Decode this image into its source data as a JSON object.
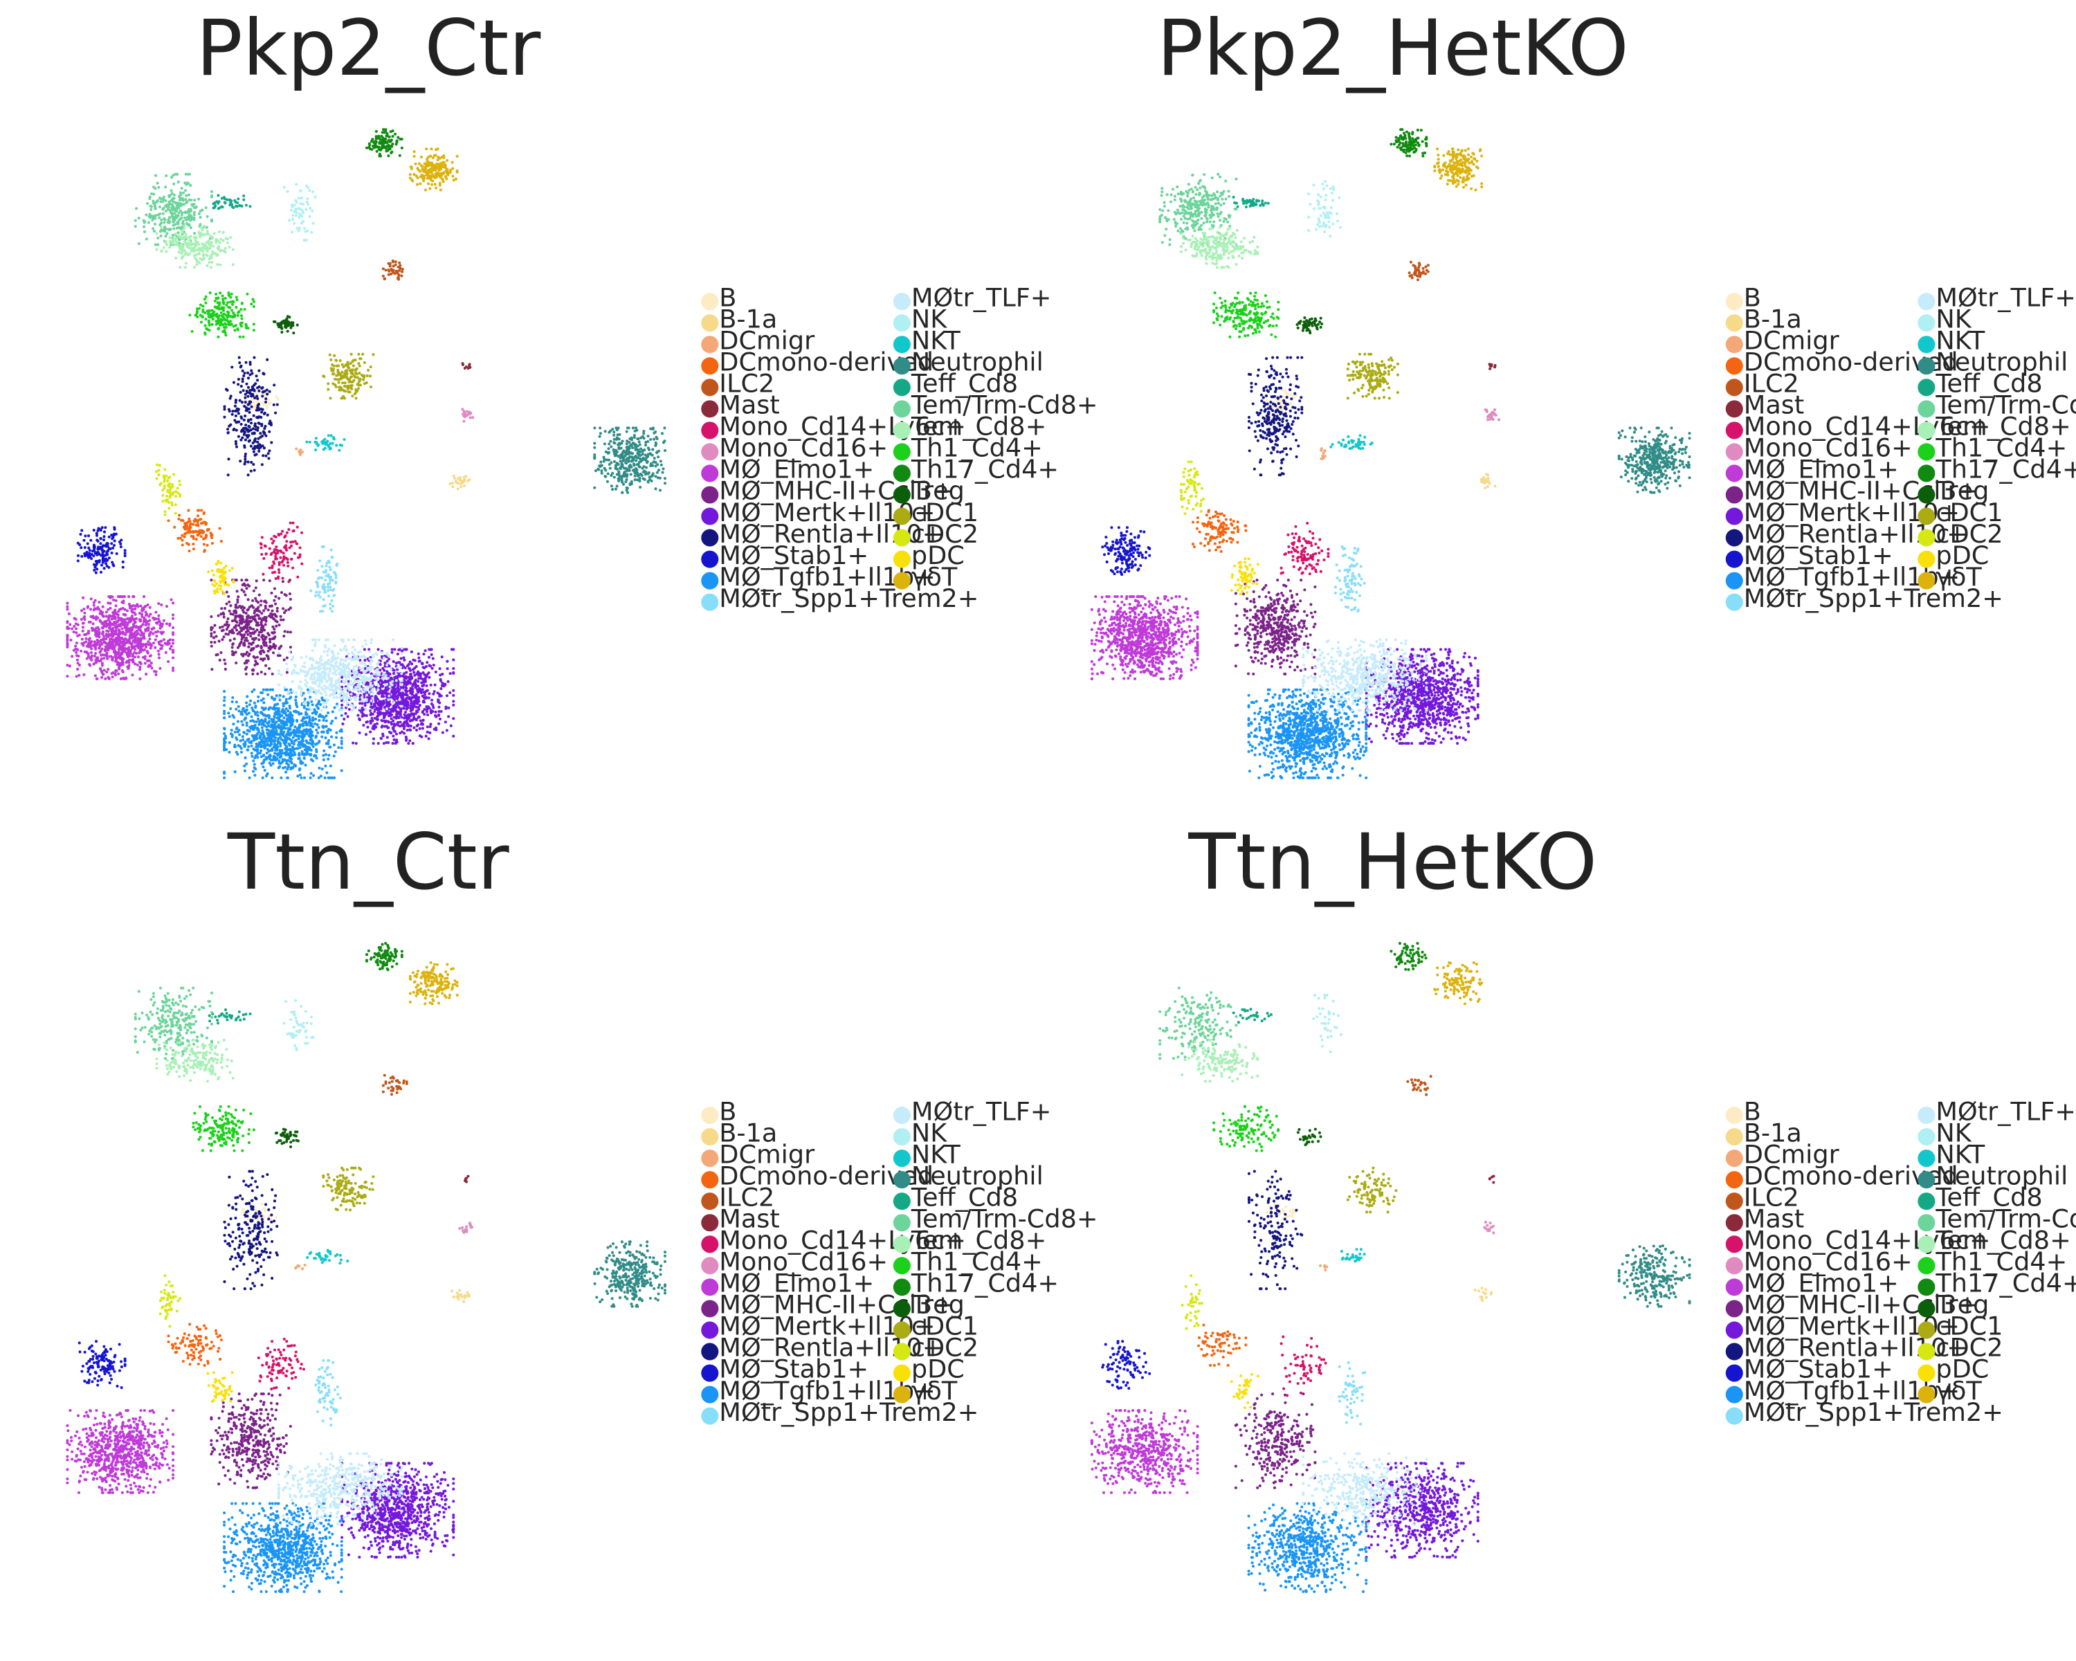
{
  "chart_data": {
    "type": "scatter",
    "grid": false,
    "axes_visible": false,
    "legend_placement": "right of each panel, two columns",
    "panels": [
      {
        "title": "Pkp2_Ctr",
        "density": 1.0
      },
      {
        "title": "Pkp2_HetKO",
        "density": 1.0
      },
      {
        "title": "Ttn_Ctr",
        "density": 0.8
      },
      {
        "title": "Ttn_HetKO",
        "density": 0.6
      }
    ],
    "legend_columns": [
      [
        "B",
        "B-1a",
        "DCmigr",
        "DCmono-derived",
        "ILC2",
        "Mast",
        "Mono_Cd14+Ly6c+",
        "Mono_Cd16+",
        "MØ_Elmo1+",
        "MØ_MHC-II+Ccl3+",
        "MØ_Mertk+Il10+",
        "MØ_Rentla+Il10+",
        "MØ_Stab1+",
        "MØ_Tgfb1+Il1b+",
        "MØtr_Spp1+Trem2+"
      ],
      [
        "MØtr_TLF+",
        "NK",
        "NKT",
        "Neutrophil",
        "Teff_Cd8",
        "Tem/Trm-Cd8+",
        "Tem_Cd8+",
        "Th1_Cd4+",
        "Th17_Cd4+",
        "Treg",
        "cDC1",
        "cDC2",
        "pDC",
        "γδT"
      ]
    ],
    "series": [
      {
        "name": "B",
        "color": "#fdebc3"
      },
      {
        "name": "B-1a",
        "color": "#f7d98a"
      },
      {
        "name": "DCmigr",
        "color": "#f5a877"
      },
      {
        "name": "DCmono-derived",
        "color": "#f46511"
      },
      {
        "name": "ILC2",
        "color": "#c1561d"
      },
      {
        "name": "Mast",
        "color": "#8b2a3a"
      },
      {
        "name": "Mono_Cd14+Ly6c+",
        "color": "#d6126a"
      },
      {
        "name": "Mono_Cd16+",
        "color": "#e08bbf"
      },
      {
        "name": "MØ_Elmo1+",
        "color": "#bf3bd8"
      },
      {
        "name": "MØ_MHC-II+Ccl3+",
        "color": "#7b2389"
      },
      {
        "name": "MØ_Mertk+Il10+",
        "color": "#7419db"
      },
      {
        "name": "MØ_Rentla+Il10+",
        "color": "#141680"
      },
      {
        "name": "MØ_Stab1+",
        "color": "#1515d0"
      },
      {
        "name": "MØ_Tgfb1+Il1b+",
        "color": "#1b95f5"
      },
      {
        "name": "MØtr_Spp1+Trem2+",
        "color": "#87def9"
      },
      {
        "name": "MØtr_TLF+",
        "color": "#c6ebfb"
      },
      {
        "name": "NK",
        "color": "#b0eff2"
      },
      {
        "name": "NKT",
        "color": "#12c7cc"
      },
      {
        "name": "Neutrophil",
        "color": "#318c87"
      },
      {
        "name": "Teff_Cd8",
        "color": "#15a886"
      },
      {
        "name": "Tem/Trm-Cd8+",
        "color": "#6dd49b"
      },
      {
        "name": "Tem_Cd8+",
        "color": "#a9f0b6"
      },
      {
        "name": "Th1_Cd4+",
        "color": "#1bd11b"
      },
      {
        "name": "Th17_Cd4+",
        "color": "#108a10"
      },
      {
        "name": "Treg",
        "color": "#0b5f0b"
      },
      {
        "name": "cDC1",
        "color": "#abab14"
      },
      {
        "name": "cDC2",
        "color": "#d6e812"
      },
      {
        "name": "pDC",
        "color": "#f9e009"
      },
      {
        "name": "γδT",
        "color": "#dcb20d"
      }
    ],
    "clusters": [
      {
        "series": "B",
        "x": 195,
        "y": 300,
        "rx": 12,
        "ry": 7,
        "n": 40
      },
      {
        "series": "B-1a",
        "x": 345,
        "y": 361,
        "rx": 7,
        "ry": 5,
        "n": 25
      },
      {
        "series": "DCmigr",
        "x": 224,
        "y": 340,
        "rx": 4,
        "ry": 4,
        "n": 10
      },
      {
        "series": "DCmono-derived",
        "x": 146,
        "y": 398,
        "rx": 18,
        "ry": 14,
        "n": 110
      },
      {
        "series": "ILC2",
        "x": 296,
        "y": 203,
        "rx": 8,
        "ry": 8,
        "n": 40
      },
      {
        "series": "Mast",
        "x": 350,
        "y": 274,
        "rx": 3,
        "ry": 3,
        "n": 8
      },
      {
        "series": "Mono_Cd14+Ly6c+",
        "x": 210,
        "y": 414,
        "rx": 16,
        "ry": 20,
        "n": 100
      },
      {
        "series": "Mono_Cd16+",
        "x": 350,
        "y": 311,
        "rx": 5,
        "ry": 5,
        "n": 20
      },
      {
        "series": "MØ_Elmo1+",
        "x": 90,
        "y": 478,
        "rx": 36,
        "ry": 28,
        "n": 900
      },
      {
        "series": "MØ_MHC-II+Ccl3+",
        "x": 188,
        "y": 470,
        "rx": 27,
        "ry": 32,
        "n": 450
      },
      {
        "series": "MØ_Mertk+Il10+",
        "x": 298,
        "y": 522,
        "rx": 38,
        "ry": 32,
        "n": 1000
      },
      {
        "series": "MØ_Rentla+Il10+",
        "x": 188,
        "y": 312,
        "rx": 18,
        "ry": 40,
        "n": 260
      },
      {
        "series": "MØ_Stab1+",
        "x": 76,
        "y": 413,
        "rx": 16,
        "ry": 16,
        "n": 150
      },
      {
        "series": "MØ_Tgfb1+Il1b+",
        "x": 212,
        "y": 550,
        "rx": 40,
        "ry": 30,
        "n": 1000
      },
      {
        "series": "MØtr_Spp1+Trem2+",
        "x": 244,
        "y": 434,
        "rx": 10,
        "ry": 22,
        "n": 80
      },
      {
        "series": "MØtr_TLF+",
        "x": 255,
        "y": 506,
        "rx": 42,
        "ry": 24,
        "n": 560
      },
      {
        "series": "NK",
        "x": 225,
        "y": 158,
        "rx": 11,
        "ry": 20,
        "n": 60
      },
      {
        "series": "NKT",
        "x": 245,
        "y": 332,
        "rx": 14,
        "ry": 5,
        "n": 40
      },
      {
        "series": "Neutrophil",
        "x": 472,
        "y": 345,
        "rx": 24,
        "ry": 22,
        "n": 380
      },
      {
        "series": "Teff_Cd8",
        "x": 172,
        "y": 152,
        "rx": 14,
        "ry": 5,
        "n": 40
      },
      {
        "series": "Tem/Trm-Cd8+",
        "x": 130,
        "y": 157,
        "rx": 26,
        "ry": 24,
        "n": 300
      },
      {
        "series": "Tem_Cd8+",
        "x": 146,
        "y": 185,
        "rx": 26,
        "ry": 14,
        "n": 220
      },
      {
        "series": "Th1_Cd4+",
        "x": 166,
        "y": 236,
        "rx": 22,
        "ry": 15,
        "n": 190
      },
      {
        "series": "Th17_Cd4+",
        "x": 288,
        "y": 107,
        "rx": 12,
        "ry": 9,
        "n": 110
      },
      {
        "series": "Treg",
        "x": 214,
        "y": 243,
        "rx": 9,
        "ry": 6,
        "n": 50
      },
      {
        "series": "cDC1",
        "x": 261,
        "y": 282,
        "rx": 17,
        "ry": 15,
        "n": 160
      },
      {
        "series": "cDC2",
        "x": 126,
        "y": 366,
        "rx": 8,
        "ry": 18,
        "n": 60
      },
      {
        "series": "pDC",
        "x": 165,
        "y": 432,
        "rx": 9,
        "ry": 12,
        "n": 60
      },
      {
        "series": "γδT",
        "x": 325,
        "y": 127,
        "rx": 16,
        "ry": 14,
        "n": 190
      }
    ]
  }
}
